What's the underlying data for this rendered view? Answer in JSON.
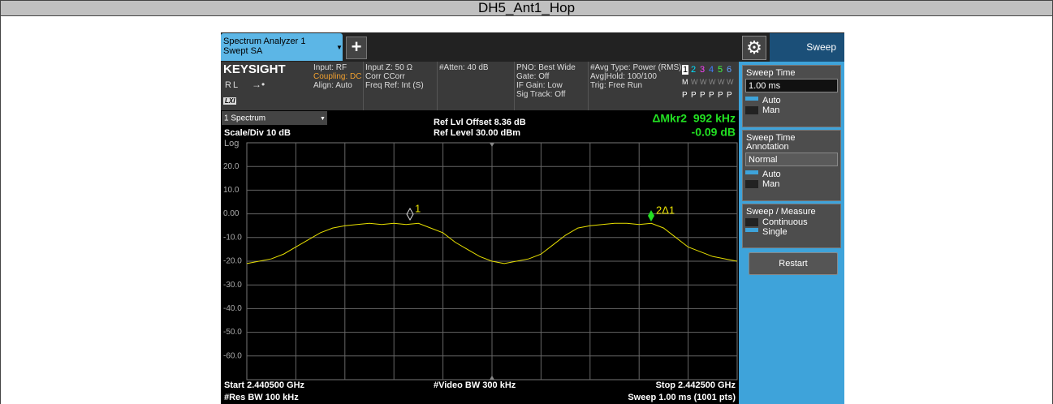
{
  "title": "DH5_Ant1_Hop",
  "tabs": {
    "measurement": [
      "Spectrum Analyzer 1",
      "Swept SA"
    ],
    "add": "+",
    "menu": "Sweep"
  },
  "info": {
    "brand": "KEYSIGHT",
    "rl": "RL",
    "lxi": "LXI",
    "columns": [
      [
        "Input: RF",
        "Coupling: DC",
        "Align: Auto"
      ],
      [
        "Input Z: 50 Ω",
        "Corr CCorr",
        "Freq Ref: Int (S)"
      ],
      [
        "#Atten: 40 dB"
      ],
      [
        "PNO: Best Wide",
        "Gate: Off",
        "IF Gain: Low",
        "Sig Track: Off"
      ],
      [
        "#Avg Type: Power (RMS)",
        "Avg|Hold: 100/100",
        "Trig: Free Run"
      ]
    ],
    "traces": [
      "1",
      "2",
      "3",
      "4",
      "5",
      "6"
    ],
    "trace_types": [
      "M",
      "W",
      "W",
      "W",
      "W",
      "W"
    ],
    "detectors": [
      "P",
      "P",
      "P",
      "P",
      "P",
      "P"
    ]
  },
  "window": {
    "name": "1 Spectrum",
    "scale": "Scale/Div 10 dB",
    "log": "Log",
    "ref_offset": "Ref Lvl Offset 8.36 dB",
    "ref_level": "Ref Level 30.00 dBm",
    "marker_readout": [
      "ΔMkr2  992 kHz",
      "-0.09 dB"
    ],
    "marker_labels": [
      "1",
      "2Δ1"
    ],
    "yticks": [
      "20.0",
      "10.0",
      "0.00",
      "-10.0",
      "-20.0",
      "-30.0",
      "-40.0",
      "-50.0",
      "-60.0"
    ]
  },
  "trace": {
    "ylim": [
      -70,
      30
    ],
    "values": [
      -21,
      -20,
      -19,
      -17,
      -14,
      -11,
      -8,
      -6,
      -5,
      -4.5,
      -4,
      -4.5,
      -4,
      -4.5,
      -4,
      -6,
      -8,
      -12,
      -15,
      -18,
      -20,
      -21,
      -20,
      -19,
      -17,
      -13,
      -9,
      -6,
      -5,
      -4.5,
      -4,
      -4,
      -4.5,
      -4,
      -6,
      -10,
      -14,
      -16,
      -18,
      -19,
      -20
    ]
  },
  "footer": {
    "start": "Start 2.440500 GHz",
    "res_bw": "#Res BW 100 kHz",
    "video_bw": "#Video BW 300 kHz",
    "stop": "Stop 2.442500 GHz",
    "sweep": "Sweep 1.00 ms (1001 pts)"
  },
  "panel": {
    "groups": [
      {
        "title": [
          "Sweep Time"
        ],
        "input": "1.00 ms",
        "options": [
          "Auto",
          "Man"
        ]
      },
      {
        "title": [
          "Sweep Time",
          "Annotation"
        ],
        "input": "Normal",
        "options": [
          "Auto",
          "Man"
        ]
      },
      {
        "title": [
          "Sweep / Measure"
        ],
        "options": [
          "Continuous",
          "Single"
        ]
      }
    ],
    "button": "Restart"
  }
}
